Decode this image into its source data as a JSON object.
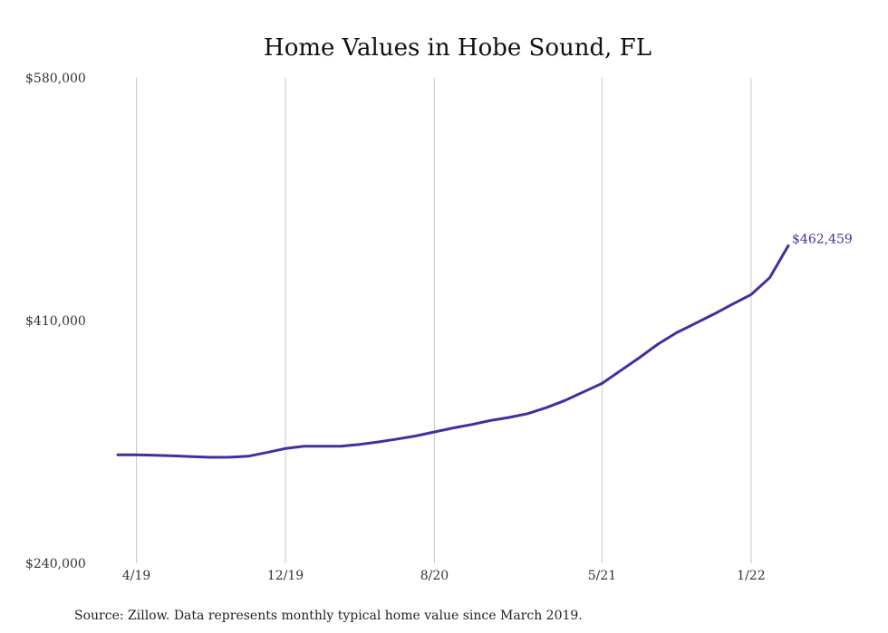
{
  "chart_data": {
    "type": "line",
    "title": "Home Values in Hobe Sound, FL",
    "xlabel": "",
    "ylabel": "",
    "x_start": "2019-03",
    "x": [
      "2019-03",
      "2019-04",
      "2019-05",
      "2019-06",
      "2019-07",
      "2019-08",
      "2019-09",
      "2019-10",
      "2019-11",
      "2019-12",
      "2020-01",
      "2020-02",
      "2020-03",
      "2020-04",
      "2020-05",
      "2020-06",
      "2020-07",
      "2020-08",
      "2020-09",
      "2020-10",
      "2020-11",
      "2020-12",
      "2021-01",
      "2021-02",
      "2021-03",
      "2021-04",
      "2021-05",
      "2021-06",
      "2021-07",
      "2021-08",
      "2021-09",
      "2021-10",
      "2021-11",
      "2021-12",
      "2022-01",
      "2022-02",
      "2022-03"
    ],
    "x_tick_labels": [
      {
        "x": "2019-04",
        "label": "4/19"
      },
      {
        "x": "2019-12",
        "label": "12/19"
      },
      {
        "x": "2020-08",
        "label": "8/20"
      },
      {
        "x": "2021-05",
        "label": "5/21"
      },
      {
        "x": "2022-01",
        "label": "1/22"
      }
    ],
    "ylim": [
      240000,
      580000
    ],
    "y_ticks": [
      {
        "value": 240000,
        "label": "$240,000"
      },
      {
        "value": 410000,
        "label": "$410,000"
      },
      {
        "value": 580000,
        "label": "$580,000"
      }
    ],
    "series": [
      {
        "values": [
          316000,
          316000,
          315700,
          315200,
          314700,
          314200,
          314300,
          315000,
          317600,
          320400,
          322000,
          322000,
          322000,
          323300,
          325000,
          327000,
          329200,
          332000,
          334800,
          337200,
          340000,
          342100,
          344800,
          349000,
          354000,
          360000,
          366000,
          375000,
          384000,
          393500,
          401500,
          408000,
          414500,
          421500,
          428200,
          440000,
          462459
        ],
        "color": "#3b32a0",
        "end_label": "$462,459"
      }
    ],
    "grid": {
      "vertical": true,
      "horizontal": false
    },
    "grid_color": "#c8c8c8",
    "legend": "none",
    "source_note": "Source: Zillow. Data represents monthly typical home value since March 2019."
  }
}
